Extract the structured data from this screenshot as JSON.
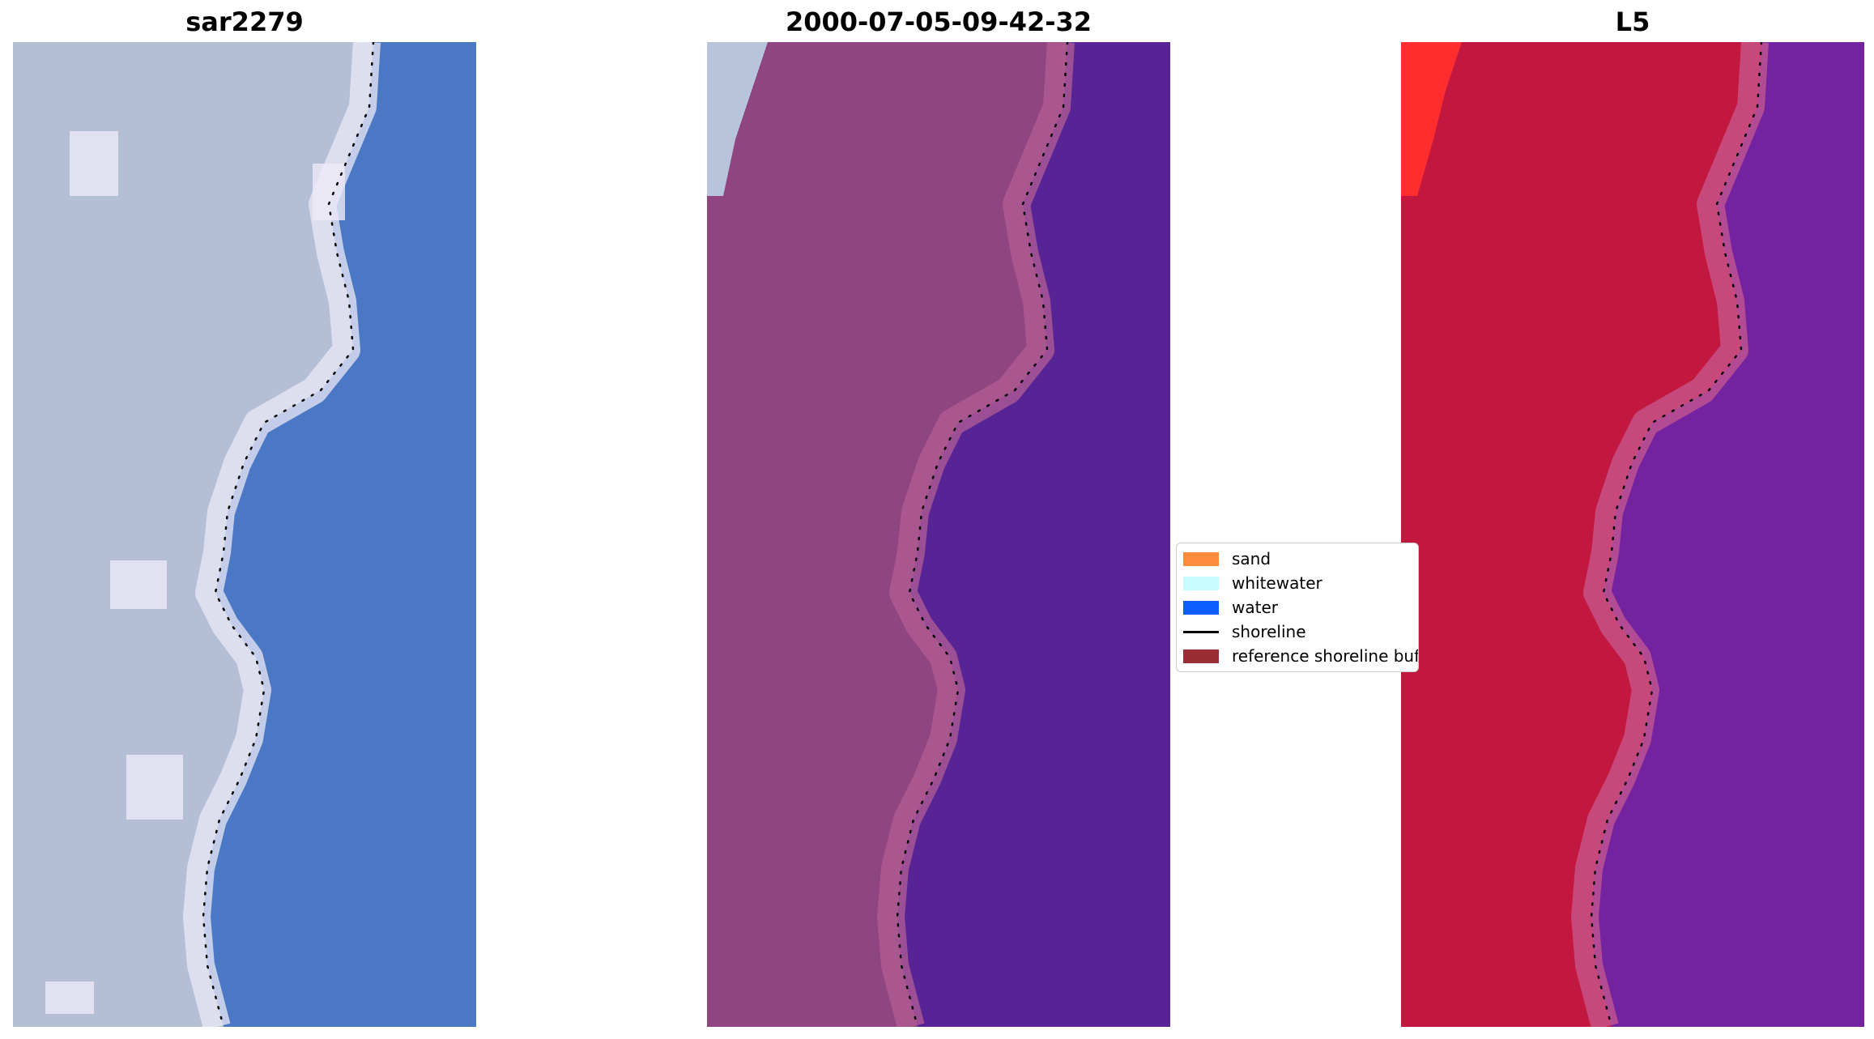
{
  "titles": [
    "sar2279",
    "2000-07-05-09-42-32",
    "L5"
  ],
  "legend": {
    "items": [
      {
        "label": "sand",
        "color": "#ff8c3d",
        "kind": "patch"
      },
      {
        "label": "whitewater",
        "color": "#c6fbff",
        "kind": "patch"
      },
      {
        "label": "water",
        "color": "#0c5dff",
        "kind": "patch"
      },
      {
        "label": "shoreline",
        "color": "#000000",
        "kind": "line"
      },
      {
        "label": "reference shoreline buffer",
        "color": "#9a2c33",
        "kind": "patch"
      }
    ]
  },
  "panels": [
    {
      "name": "rgb-image-panel",
      "land_color": "#b4bfd6",
      "sea_color": "#4a78c4",
      "edge_color": "#ece9f6"
    },
    {
      "name": "classified-image-panel",
      "land_color": "#8f457f",
      "sea_color": "#562495",
      "edge_color": "#b45d94"
    },
    {
      "name": "mndwi-image-panel",
      "land_color": "#c2173f",
      "sea_color": "#7322a0",
      "edge_color": "#c85a90"
    }
  ]
}
